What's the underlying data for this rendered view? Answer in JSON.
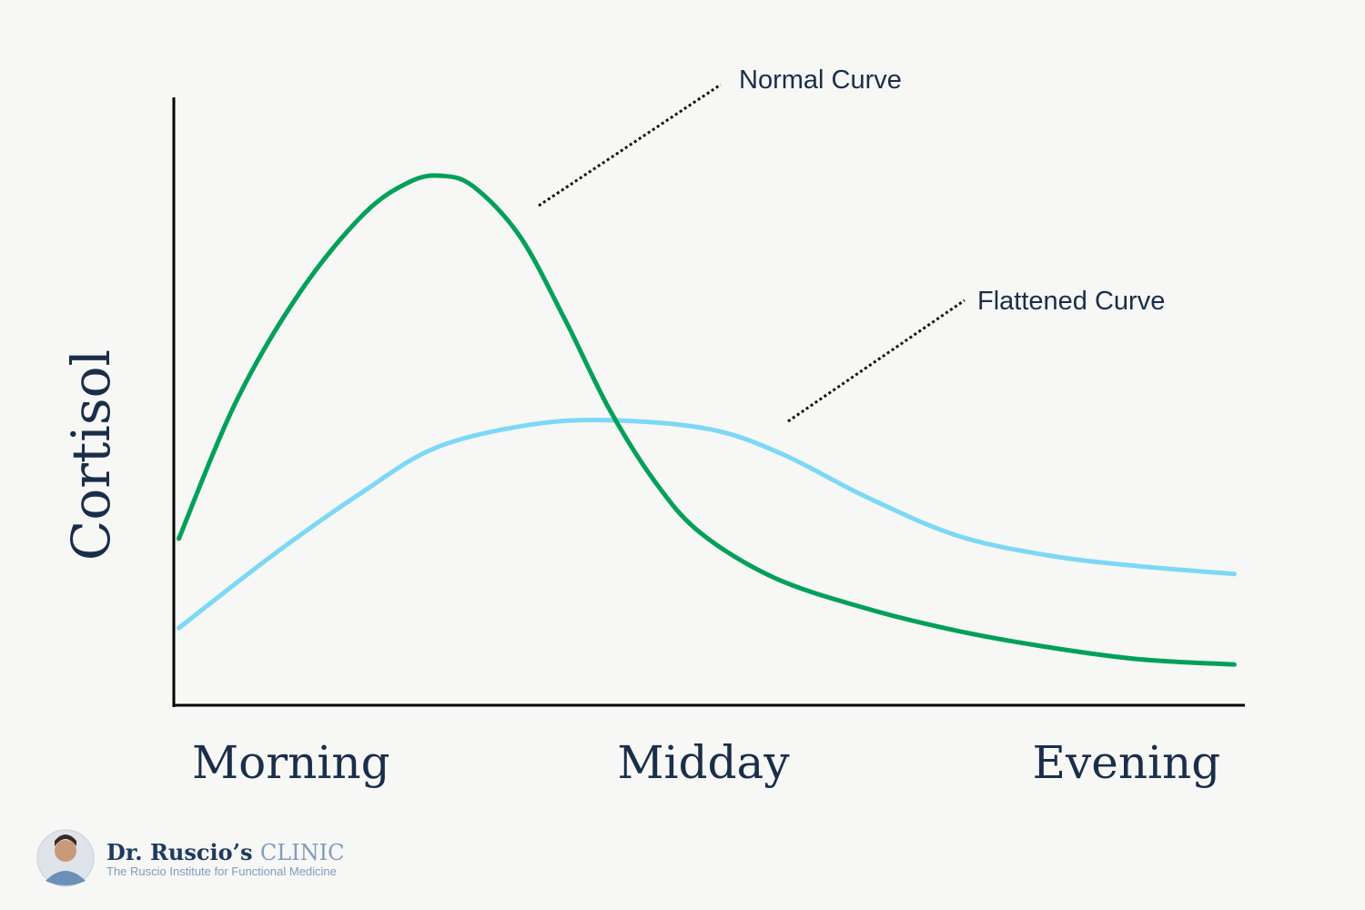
{
  "chart_data": {
    "type": "line",
    "y_label": "Cortisol",
    "xlim": [
      0,
      100
    ],
    "ylim": [
      0,
      100
    ],
    "xticks": [
      {
        "value": 10.8,
        "label": "Morning"
      },
      {
        "value": 49.4,
        "label": "Midday"
      },
      {
        "value": 89,
        "label": "Evening"
      }
    ],
    "annotations": [
      "Normal Curve",
      "Flattened Curve"
    ],
    "series": [
      {
        "name": "Normal Curve",
        "color": "#00a05a",
        "x": [
          0.3,
          5.7,
          11.7,
          17.6,
          21.9,
          24.9,
          27.9,
          32.2,
          36.4,
          40.6,
          44.9,
          49.1,
          56.0,
          64.5,
          73.0,
          81.5,
          90.0,
          99.1
        ],
        "values": [
          27.4,
          50.1,
          68.1,
          80.8,
          86.1,
          87.1,
          85.3,
          77.2,
          63.6,
          48.7,
          36.7,
          28.4,
          21.0,
          16.0,
          12.3,
          9.6,
          7.6,
          6.7
        ]
      },
      {
        "name": "Flattened Curve",
        "color": "#7dd8f5",
        "x": [
          0.3,
          9.1,
          17.6,
          24.4,
          33.0,
          40.6,
          50.0,
          56.8,
          64.5,
          73.0,
          81.5,
          90.0,
          99.1
        ],
        "values": [
          12.7,
          24.7,
          35.2,
          42.4,
          46.1,
          46.9,
          45.4,
          41.3,
          34.4,
          28.0,
          24.7,
          22.9,
          21.6
        ]
      }
    ]
  },
  "footer": {
    "brand": "Dr. Ruscio’s",
    "brand_suffix": "CLINIC",
    "tagline": "The Ruscio Institute for Functional Medicine"
  }
}
